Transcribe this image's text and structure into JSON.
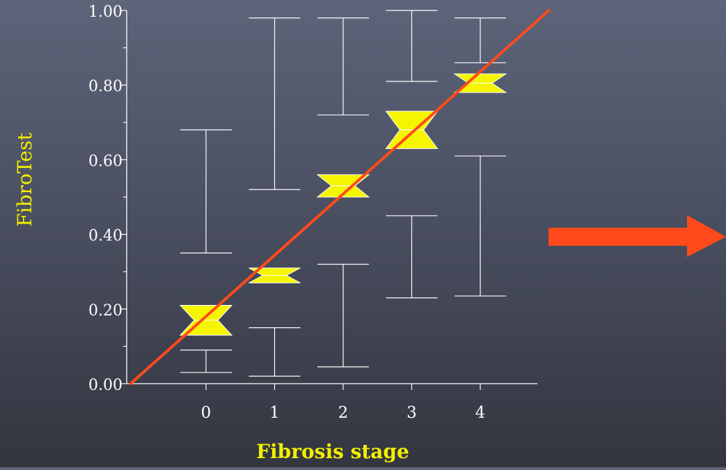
{
  "chart_data": {
    "type": "boxplot",
    "xlabel": "Fibrosis stage",
    "ylabel": "FibroTest",
    "categories": [
      "0",
      "1",
      "2",
      "3",
      "4"
    ],
    "yticks": [
      "0.00",
      "0.20",
      "0.40",
      "0.60",
      "0.80",
      "1.00"
    ],
    "ylim": [
      0,
      1
    ],
    "grid": false,
    "boxes": [
      {
        "stage": "0",
        "whisker_low": 0.03,
        "p10": 0.09,
        "notch_low": 0.13,
        "median": 0.17,
        "notch_high": 0.21,
        "p90": 0.35,
        "whisker_high": 0.68
      },
      {
        "stage": "1",
        "whisker_low": 0.02,
        "p10": 0.15,
        "notch_low": 0.27,
        "median": 0.29,
        "notch_high": 0.31,
        "p90": 0.52,
        "whisker_high": 0.98
      },
      {
        "stage": "2",
        "whisker_low": 0.045,
        "p10": 0.32,
        "notch_low": 0.5,
        "median": 0.53,
        "notch_high": 0.56,
        "p90": 0.72,
        "whisker_high": 0.98
      },
      {
        "stage": "3",
        "whisker_low": 0.23,
        "p10": 0.45,
        "notch_low": 0.63,
        "median": 0.68,
        "notch_high": 0.73,
        "p90": 0.81,
        "whisker_high": 1.0
      },
      {
        "stage": "4",
        "whisker_low": 0.235,
        "p10": 0.61,
        "notch_low": 0.78,
        "median": 0.805,
        "notch_high": 0.83,
        "p90": 0.86,
        "whisker_high": 0.98
      }
    ],
    "trend_line": {
      "from": {
        "stage_index": -1.1,
        "y": 0.0
      },
      "to": {
        "stage_index": 5.0,
        "y": 1.0
      }
    },
    "colors": {
      "box_fill": "#f5f500",
      "box_stroke": "#ffffff",
      "whisker": "#ffffff",
      "axis": "#ffffff",
      "trend_line": "#ff4a1c",
      "ylabel": "#f3ef00",
      "xlabel": "#f3ef00",
      "tick_label": "#ffffff",
      "arrow": "#ff4a1c"
    }
  }
}
